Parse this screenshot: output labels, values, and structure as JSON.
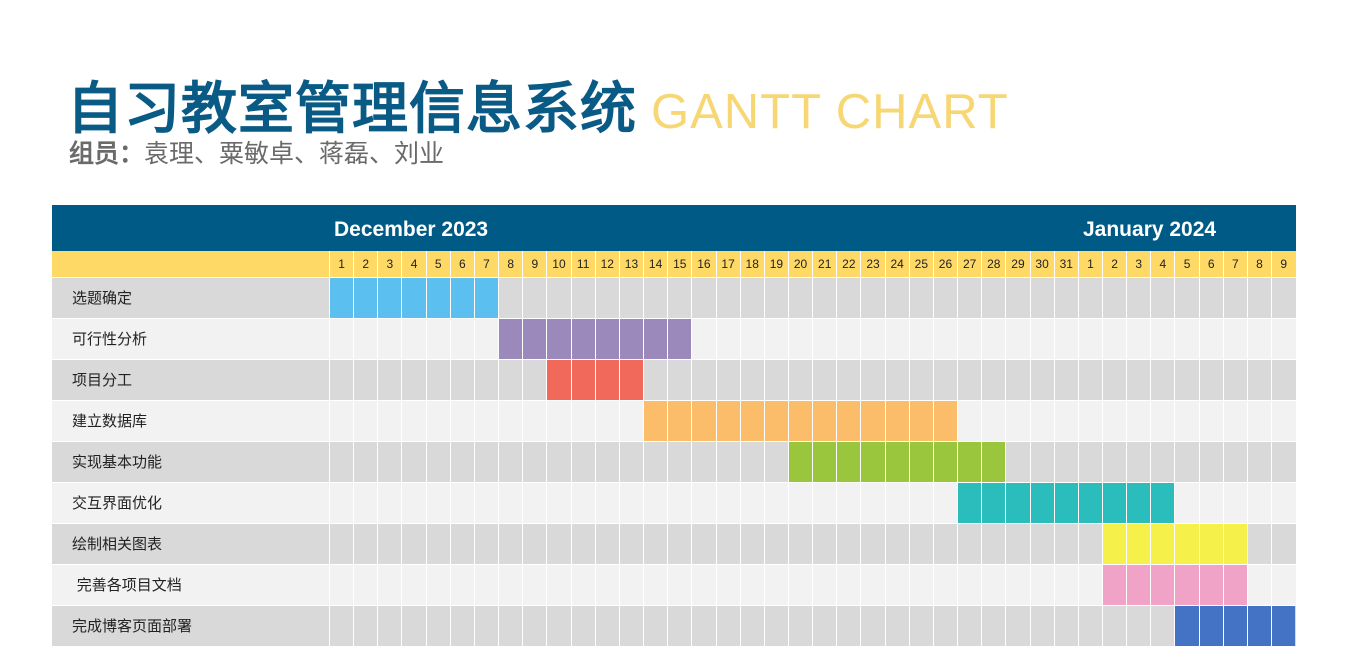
{
  "header": {
    "title_cn": "自习教室管理信息系统",
    "title_en": "GANTT CHART",
    "members_label": "组员：",
    "members": "袁理、粟敏卓、蒋磊、刘业"
  },
  "colors": {
    "header_blue": "#005a86",
    "title_blue": "#0a5a86",
    "day_yellow": "#ffd966",
    "title_en_yellow": "#f7d774",
    "row_dark": "#d9d9d9",
    "row_light": "#f2f2f2"
  },
  "chart_data": {
    "type": "gantt",
    "months": [
      {
        "label": "December 2023",
        "start_col": 0,
        "days": 31
      },
      {
        "label": "January 2024",
        "start_col": 31,
        "days": 9
      }
    ],
    "days": [
      "1",
      "2",
      "3",
      "4",
      "5",
      "6",
      "7",
      "8",
      "9",
      "10",
      "11",
      "12",
      "13",
      "14",
      "15",
      "16",
      "17",
      "18",
      "19",
      "20",
      "21",
      "22",
      "23",
      "24",
      "25",
      "26",
      "27",
      "28",
      "29",
      "30",
      "31",
      "1",
      "2",
      "3",
      "4",
      "5",
      "6",
      "7",
      "8",
      "9"
    ],
    "tasks": [
      {
        "name": "选题确定",
        "start": "2023-12-01",
        "end": "2023-12-07",
        "color": "#5bc0f0"
      },
      {
        "name": "可行性分析",
        "start": "2023-12-08",
        "end": "2023-12-15",
        "color": "#9b89bb"
      },
      {
        "name": "项目分工",
        "start": "2023-12-10",
        "end": "2023-12-13",
        "color": "#f0695b"
      },
      {
        "name": "建立数据库",
        "start": "2023-12-14",
        "end": "2023-12-26",
        "color": "#fbbd6a"
      },
      {
        "name": "实现基本功能",
        "start": "2023-12-20",
        "end": "2023-12-28",
        "color": "#9ac63e"
      },
      {
        "name": "交互界面优化",
        "start": "2023-12-27",
        "end": "2024-01-04",
        "color": "#2bbcbc"
      },
      {
        "name": "绘制相关图表",
        "start": "2024-01-02",
        "end": "2024-01-07",
        "color": "#f6f04a"
      },
      {
        "name": " 完善各项目文档",
        "start": "2024-01-02",
        "end": "2024-01-07",
        "color": "#f0a3c7"
      },
      {
        "name": "完成博客页面部署",
        "start": "2024-01-05",
        "end": "2024-01-09",
        "color": "#4472c4"
      }
    ]
  }
}
